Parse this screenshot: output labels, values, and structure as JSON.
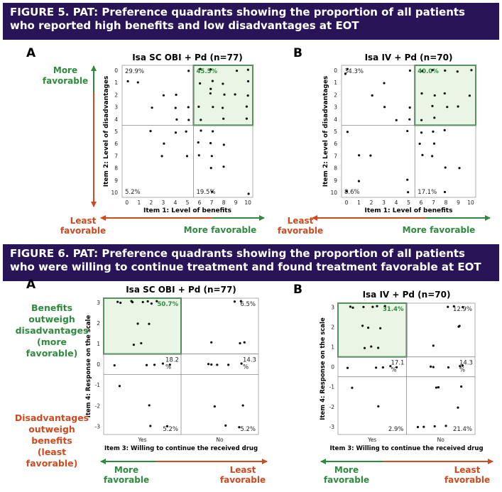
{
  "figures": [
    {
      "title": "FIGURE 5. PAT: Preference quadrants showing the proportion of all patients who reported high benefits and low disadvantages at EOT",
      "y_top_label": "More favorable",
      "y_bottom_label": "Least favorable",
      "x_left_label": "Least favorable",
      "x_right_label": "More favorable",
      "y_top_color": "#2e8b3e",
      "y_bottom_color": "#cf4a1f"
    },
    {
      "title": "FIGURE 6. PAT: Preference quadrants showing the proportion of all patients who were willing to continue treatment and found treatment favorable at EOT",
      "y_top_label": "Benefits outweigh disadvantages (more favorable)",
      "y_bottom_label": "Disadvantages outweigh benefits (least favorable)",
      "x_left_label": "More favorable",
      "x_right_label": "Least favorable",
      "y_top_color": "#2e8b3e",
      "y_bottom_color": "#cf4a1f"
    }
  ],
  "chart_data": [
    {
      "panel": "A",
      "type": "scatter",
      "title": "Isa SC OBI + Pd (n=77)",
      "xlabel": "Item 1: Level of benefits",
      "ylabel": "Item 2: Level of disadvantages",
      "xlim": [
        0,
        10
      ],
      "ylim": [
        0,
        10
      ],
      "y_inverted": true,
      "x_ticks": [
        "0",
        "1",
        "2",
        "3",
        "4",
        "5",
        "6",
        "7",
        "8",
        "9",
        "10"
      ],
      "y_ticks": [
        "0",
        "1",
        "2",
        "3",
        "4",
        "5",
        "6",
        "7",
        "8",
        "9",
        "10"
      ],
      "quadrant_split": {
        "x": 5.5,
        "y": 4.5
      },
      "highlight_quadrant": "top-right",
      "highlight_color": "#2e8b3e",
      "quadrant_labels": {
        "top_left": "29.9%",
        "top_right": "45.5%",
        "bottom_left": "5.2%",
        "bottom_right": "19.5%"
      },
      "points": [
        [
          0,
          1
        ],
        [
          1,
          1
        ],
        [
          2,
          3
        ],
        [
          3,
          2
        ],
        [
          4,
          2
        ],
        [
          4,
          3
        ],
        [
          4,
          4
        ],
        [
          5,
          0
        ],
        [
          5,
          3
        ],
        [
          5,
          4
        ],
        [
          6,
          0
        ],
        [
          6,
          1
        ],
        [
          6,
          3
        ],
        [
          6,
          4
        ],
        [
          7,
          0
        ],
        [
          7,
          1
        ],
        [
          7,
          1.5
        ],
        [
          7,
          2
        ],
        [
          7,
          3
        ],
        [
          8,
          1
        ],
        [
          8,
          2
        ],
        [
          8,
          3
        ],
        [
          8,
          4
        ],
        [
          9,
          0
        ],
        [
          9,
          2
        ],
        [
          10,
          0
        ],
        [
          10,
          1
        ],
        [
          10,
          2
        ],
        [
          10,
          3
        ],
        [
          10,
          4
        ],
        [
          2,
          5
        ],
        [
          4,
          5
        ],
        [
          5,
          5
        ],
        [
          5,
          7
        ],
        [
          3,
          6
        ],
        [
          3,
          7
        ],
        [
          6,
          5
        ],
        [
          6,
          6
        ],
        [
          6,
          7
        ],
        [
          7,
          5
        ],
        [
          7,
          6
        ],
        [
          7,
          7
        ],
        [
          7,
          8
        ],
        [
          8,
          6
        ],
        [
          8,
          8
        ],
        [
          10,
          10
        ],
        [
          7,
          10
        ]
      ]
    },
    {
      "panel": "B",
      "type": "scatter",
      "title": "Isa IV + Pd (n=70)",
      "xlabel": "Item 1: Level of benefits",
      "ylabel": "Item 2: Level of disadvantages",
      "xlim": [
        0,
        10
      ],
      "ylim": [
        0,
        10
      ],
      "y_inverted": true,
      "x_ticks": [
        "0",
        "1",
        "2",
        "3",
        "4",
        "5",
        "6",
        "7",
        "8",
        "9",
        "10"
      ],
      "y_ticks": [
        "0",
        "1",
        "2",
        "3",
        "4",
        "5",
        "6",
        "7",
        "8",
        "9",
        "10"
      ],
      "quadrant_split": {
        "x": 5.5,
        "y": 4.5
      },
      "highlight_quadrant": "top-right",
      "highlight_color": "#2e8b3e",
      "quadrant_labels": {
        "top_left": "34.3%",
        "top_right": "40.0%",
        "bottom_left": "8.6%",
        "bottom_right": "17.1%"
      },
      "points": [
        [
          0,
          0
        ],
        [
          0,
          0.3
        ],
        [
          2,
          2
        ],
        [
          3,
          1
        ],
        [
          3,
          3
        ],
        [
          4,
          4
        ],
        [
          5,
          0
        ],
        [
          5,
          3
        ],
        [
          5,
          4
        ],
        [
          6,
          0
        ],
        [
          6,
          2
        ],
        [
          6,
          4
        ],
        [
          7,
          0
        ],
        [
          7,
          2
        ],
        [
          7,
          3
        ],
        [
          7,
          4
        ],
        [
          8,
          0
        ],
        [
          8,
          2
        ],
        [
          8,
          3
        ],
        [
          9,
          0
        ],
        [
          10,
          0
        ],
        [
          10,
          2
        ],
        [
          9,
          3
        ],
        [
          0,
          5
        ],
        [
          2,
          7
        ],
        [
          1,
          7
        ],
        [
          0,
          10
        ],
        [
          1,
          9
        ],
        [
          5,
          5
        ],
        [
          5,
          9
        ],
        [
          5,
          10
        ],
        [
          6,
          5
        ],
        [
          6,
          6
        ],
        [
          7,
          5
        ],
        [
          7,
          6
        ],
        [
          7,
          7
        ],
        [
          6,
          7
        ],
        [
          8,
          5
        ],
        [
          8,
          8
        ],
        [
          9,
          8
        ],
        [
          8,
          10
        ]
      ]
    },
    {
      "panel": "A",
      "type": "scatter",
      "title": "Isa SC OBI + Pd (n=77)",
      "xlabel": "Item 3: Willing to continue the received drug",
      "ylabel": "Item 4: Response on the scale",
      "x_categories": [
        "Yes",
        "No"
      ],
      "ylim": [
        -3,
        3
      ],
      "y_ticks": [
        "3",
        "2",
        "1",
        "0",
        "-1",
        "-2",
        "-3"
      ],
      "highlight_quadrant": "top-left",
      "highlight_color": "#2e8b3e",
      "quadrant_labels": {
        "top_left": "50.7%",
        "top_right": "6.5%",
        "middle_left": "18.2 %",
        "middle_right": "14.3 %",
        "bottom_left": "5.2%",
        "bottom_right": "5.2%"
      },
      "points": [
        [
          "Yes",
          3
        ],
        [
          "Yes",
          3
        ],
        [
          "Yes",
          3
        ],
        [
          "Yes",
          3
        ],
        [
          "Yes",
          3
        ],
        [
          "Yes",
          3
        ],
        [
          "Yes",
          3
        ],
        [
          "Yes",
          3
        ],
        [
          "Yes",
          2
        ],
        [
          "Yes",
          2
        ],
        [
          "Yes",
          1
        ],
        [
          "Yes",
          1
        ],
        [
          "Yes",
          0
        ],
        [
          "Yes",
          0
        ],
        [
          "Yes",
          0
        ],
        [
          "Yes",
          0
        ],
        [
          "Yes",
          0
        ],
        [
          "Yes",
          -1
        ],
        [
          "Yes",
          -2
        ],
        [
          "Yes",
          -3
        ],
        [
          "Yes",
          -3
        ],
        [
          "No",
          3
        ],
        [
          "No",
          3
        ],
        [
          "No",
          1
        ],
        [
          "No",
          1
        ],
        [
          "No",
          1
        ],
        [
          "No",
          0
        ],
        [
          "No",
          0
        ],
        [
          "No",
          0
        ],
        [
          "No",
          0
        ],
        [
          "No",
          0
        ],
        [
          "No",
          -2
        ],
        [
          "No",
          -2
        ],
        [
          "No",
          -3
        ],
        [
          "No",
          -3
        ]
      ]
    },
    {
      "panel": "B",
      "type": "scatter",
      "title": "Isa IV + Pd (n=70)",
      "xlabel": "Item 3: Willing to continue the received drug",
      "ylabel": "Item 4: Response on the scale",
      "x_categories": [
        "Yes",
        "No"
      ],
      "ylim": [
        -3,
        3
      ],
      "y_ticks": [
        "3",
        "2",
        "1",
        "0",
        "-1",
        "-2",
        "-3"
      ],
      "highlight_quadrant": "top-left",
      "highlight_color": "#2e8b3e",
      "quadrant_labels": {
        "top_left": "31.4%",
        "top_right": "12.9%",
        "middle_left": "17.1 %",
        "middle_right": "14.3 %",
        "bottom_left": "2.9%",
        "bottom_right": "21.4%"
      },
      "points": [
        [
          "Yes",
          3
        ],
        [
          "Yes",
          3
        ],
        [
          "Yes",
          3
        ],
        [
          "Yes",
          3
        ],
        [
          "Yes",
          3
        ],
        [
          "Yes",
          3
        ],
        [
          "Yes",
          2
        ],
        [
          "Yes",
          2
        ],
        [
          "Yes",
          2
        ],
        [
          "Yes",
          1
        ],
        [
          "Yes",
          1
        ],
        [
          "Yes",
          1
        ],
        [
          "Yes",
          0
        ],
        [
          "Yes",
          0
        ],
        [
          "Yes",
          0
        ],
        [
          "Yes",
          0
        ],
        [
          "Yes",
          0
        ],
        [
          "Yes",
          -1
        ],
        [
          "Yes",
          -2
        ],
        [
          "No",
          3
        ],
        [
          "No",
          3
        ],
        [
          "No",
          3
        ],
        [
          "No",
          2
        ],
        [
          "No",
          2
        ],
        [
          "No",
          1
        ],
        [
          "No",
          0
        ],
        [
          "No",
          0
        ],
        [
          "No",
          0
        ],
        [
          "No",
          0
        ],
        [
          "No",
          0
        ],
        [
          "No",
          -1
        ],
        [
          "No",
          -1
        ],
        [
          "No",
          -1
        ],
        [
          "No",
          -2
        ],
        [
          "No",
          -3
        ],
        [
          "No",
          -3
        ],
        [
          "No",
          -3
        ],
        [
          "No",
          -3
        ]
      ]
    }
  ]
}
